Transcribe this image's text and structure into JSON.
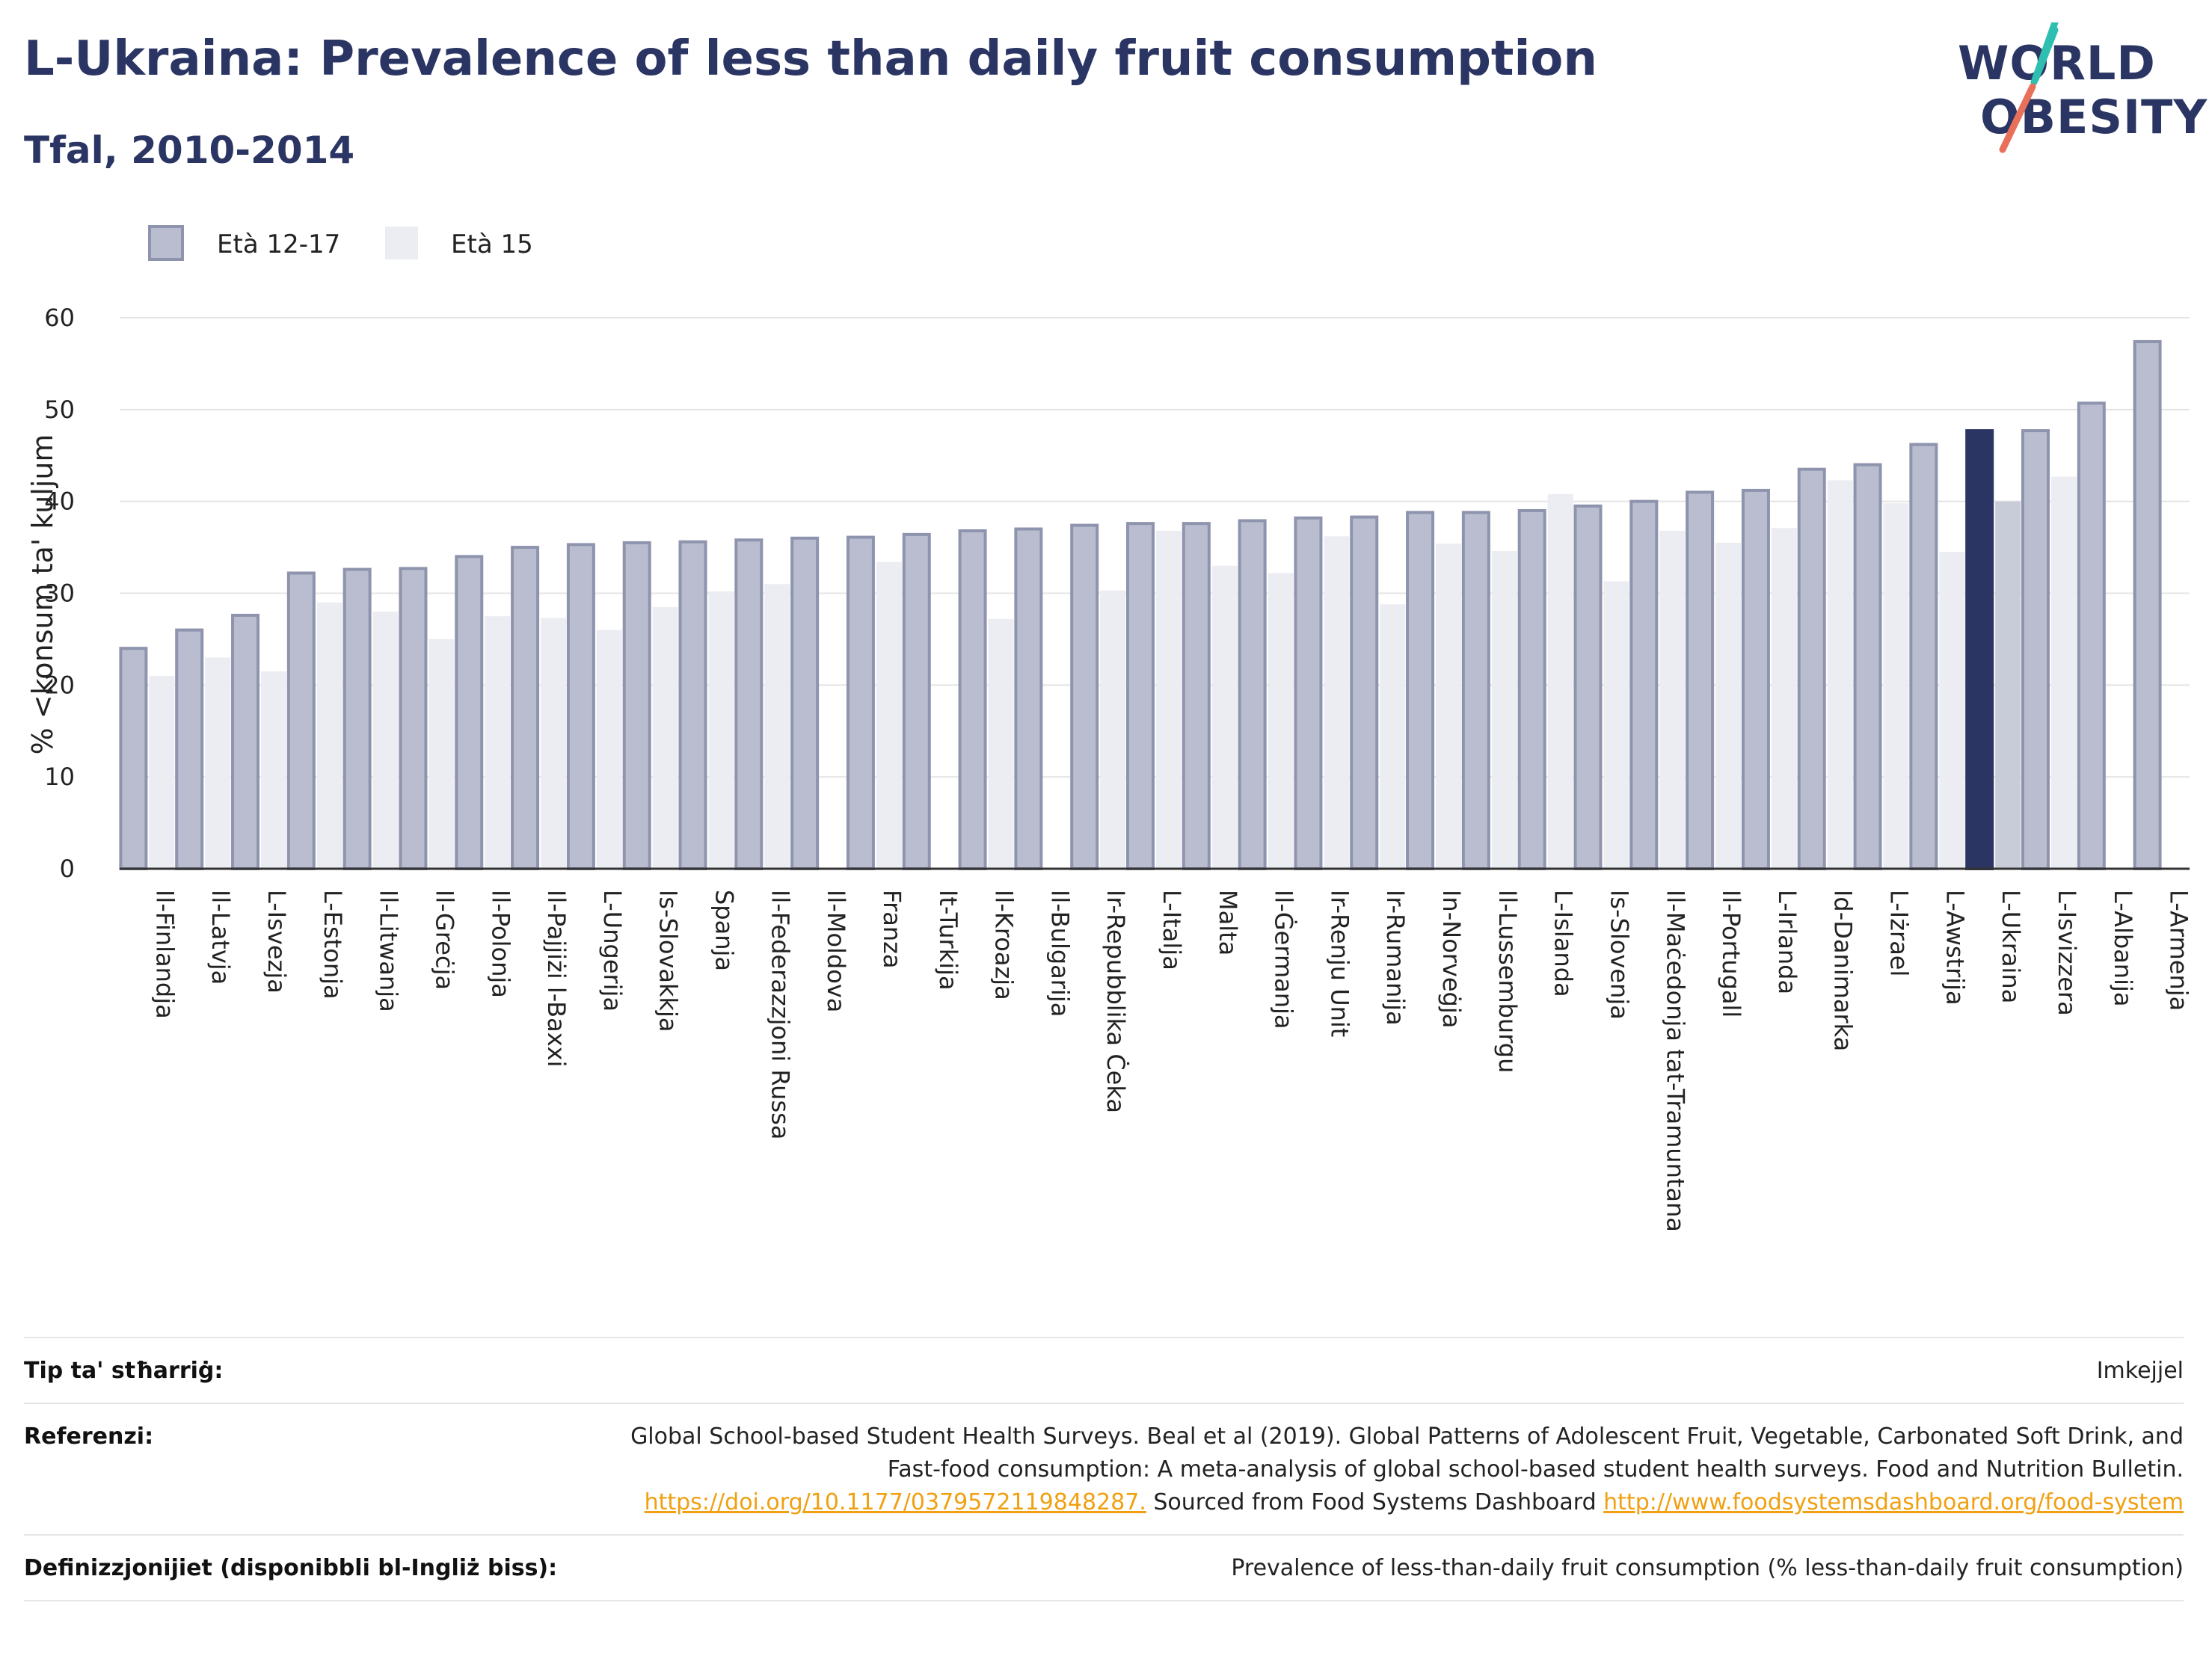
{
  "header": {
    "title": "L-Ukraina: Prevalence of less than daily fruit consumption",
    "subtitle": "Tfal, 2010-2014"
  },
  "logo": {
    "line1": "WORLD",
    "line2": "OBESITY"
  },
  "colors": {
    "series1": "#b9bdcf",
    "series1_border": "#8e94ad",
    "series2": "#ecedf2",
    "highlight1": "#2b3563",
    "highlight2": "#c8cbd8",
    "grid": "#e4e4e4",
    "title": "#2b3563"
  },
  "chart_data": {
    "type": "bar",
    "ylabel": "% <konsum ta' kuljum",
    "ylim": [
      0,
      60
    ],
    "yticks": [
      0,
      10,
      20,
      30,
      40,
      50,
      60
    ],
    "grid": true,
    "legend_position": "top-left",
    "highlight_category": "L-Ukraina",
    "categories": [
      "Il-Finlandja",
      "Il-Latvja",
      "L-Isvezja",
      "L-Estonja",
      "Il-Litwanja",
      "Il-Greċja",
      "Il-Polonja",
      "Il-Pajjiżi l-Baxxi",
      "L-Ungerija",
      "Is-Slovakkja",
      "Spanja",
      "Il-Federazzjoni Russa",
      "Il-Moldova",
      "Franza",
      "It-Turkija",
      "Il-Kroazja",
      "Il-Bulgarija",
      "Ir-Repubblika Ċeka",
      "L-Italja",
      "Malta",
      "Il-Ġermanja",
      "Ir-Renju Unit",
      "Ir-Rumanija",
      "In-Norveġja",
      "Il-Lussemburgu",
      "L-Islanda",
      "Is-Slovenja",
      "Il-Maċedonja tat-Tramuntana",
      "Il-Portugall",
      "L-Irlanda",
      "Id-Danimarka",
      "L-Iżrael",
      "L-Awstrija",
      "L-Ukraina",
      "L-Isvizzera",
      "L-Albanija",
      "L-Armenja"
    ],
    "series": [
      {
        "name": "Età 12-17",
        "values": [
          24,
          26,
          27.6,
          32.2,
          32.6,
          32.7,
          34,
          35,
          35.3,
          35.5,
          35.6,
          35.8,
          36,
          36.1,
          36.4,
          36.8,
          37,
          37.4,
          37.6,
          37.6,
          37.9,
          38.2,
          38.3,
          38.8,
          38.8,
          39,
          39.5,
          40,
          41,
          41.2,
          43.5,
          44,
          46.2,
          47.7,
          47.7,
          50.7,
          57.4
        ]
      },
      {
        "name": "Età 15",
        "values": [
          21,
          23,
          21.5,
          29,
          28,
          25,
          27.5,
          27.3,
          26,
          28.5,
          30.2,
          31,
          null,
          33.4,
          null,
          27.2,
          null,
          30.3,
          36.8,
          33,
          32.2,
          36.2,
          28.8,
          35.4,
          34.6,
          40.8,
          31.3,
          36.8,
          35.5,
          37.1,
          42.3,
          39.8,
          34.5,
          40,
          42.7,
          null,
          null
        ]
      }
    ]
  },
  "info": {
    "rows": [
      {
        "key": "Tip ta' stħarriġ:",
        "value": "Imkejjel"
      },
      {
        "key": "Referenzi:",
        "value_text1": "Global School-based Student Health Surveys. Beal et al (2019). Global Patterns of Adolescent Fruit, Vegetable, Carbonated Soft Drink, and Fast-food consumption: A meta-analysis of global school-based student health surveys. Food and Nutrition Bulletin.",
        "link1": "https://doi.org/10.1177/0379572119848287.",
        "value_text2": " Sourced from Food Systems Dashboard ",
        "link2": "http://www.foodsystemsdashboard.org/food-system"
      },
      {
        "key": "Definizzjonijiet (disponibbli bl-Ingliż biss):",
        "value": "Prevalence of less-than-daily fruit consumption (% less-than-daily fruit consumption)"
      }
    ]
  }
}
